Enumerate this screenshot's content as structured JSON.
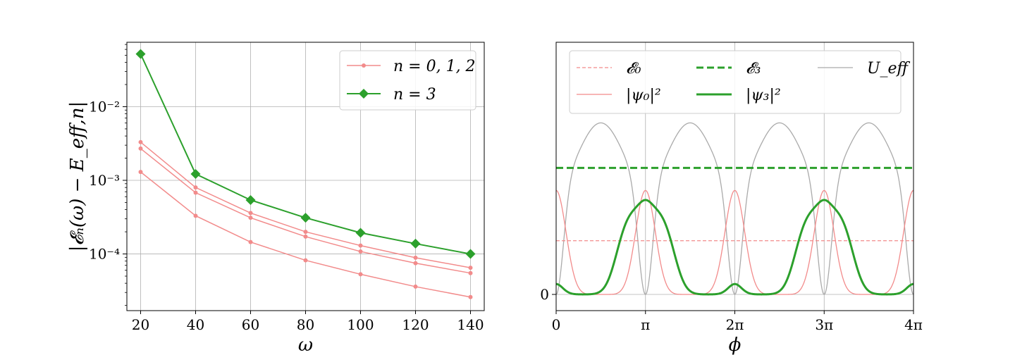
{
  "chart_data": [
    {
      "type": "line",
      "xlabel": "ω",
      "ylabel": "|𝓔ₙ(ω) − E_eff,n|",
      "yscale": "log",
      "xlim": [
        15,
        145
      ],
      "ylim": [
        1.7e-05,
        0.075
      ],
      "grid": true,
      "legend_position": "top-right",
      "x": [
        20,
        40,
        60,
        80,
        100,
        120,
        140
      ],
      "x_ticks": [
        "20",
        "40",
        "60",
        "80",
        "100",
        "120",
        "140"
      ],
      "y_ticks": [
        {
          "value": 0.01,
          "label": "10⁻²"
        },
        {
          "value": 0.001,
          "label": "10⁻³"
        },
        {
          "value": 0.0001,
          "label": "10⁻⁴"
        }
      ],
      "series": [
        {
          "name": "n = 0, 1, 2",
          "color": "#f28b8b",
          "marker": "dot",
          "values": [
            0.0013,
            0.00033,
            0.000145,
            8.2e-05,
            5.3e-05,
            3.6e-05,
            2.6e-05
          ]
        },
        {
          "name": "",
          "color": "#f28b8b",
          "marker": "dot",
          "values": [
            0.0027,
            0.00068,
            0.00031,
            0.000172,
            0.000108,
            7.5e-05,
            5.5e-05
          ]
        },
        {
          "name": "",
          "color": "#f28b8b",
          "marker": "dot",
          "values": [
            0.0033,
            0.0008,
            0.00036,
            0.0002,
            0.00013,
            8.9e-05,
            6.5e-05
          ]
        },
        {
          "name": "n = 3",
          "color": "#2ca02c",
          "marker": "diamond",
          "values": [
            0.052,
            0.00122,
            0.00054,
            0.00031,
            0.000194,
            0.000138,
            0.0001
          ]
        }
      ]
    },
    {
      "type": "line",
      "xlabel": "ϕ",
      "ylabel": "",
      "xlim": [
        0,
        12.566
      ],
      "x_ticks": [
        "0",
        "π",
        "2π",
        "3π",
        "4π"
      ],
      "y_ticks": [
        "0"
      ],
      "grid": true,
      "legend_position": "top",
      "series": [
        {
          "name": "𝓔₀",
          "color": "#f28b8b",
          "style": "dashed-thin",
          "value": 0.31
        },
        {
          "name": "|ψ₀|²",
          "color": "#f28b8b",
          "style": "solid-thin"
        },
        {
          "name": "𝓔₃",
          "color": "#2ca02c",
          "style": "dashed-thick",
          "value": 0.73
        },
        {
          "name": "|ψ₃|²",
          "color": "#2ca02c",
          "style": "solid-thick"
        },
        {
          "name": "U_eff",
          "color": "#aaaaaa",
          "style": "solid-thin"
        }
      ]
    }
  ]
}
